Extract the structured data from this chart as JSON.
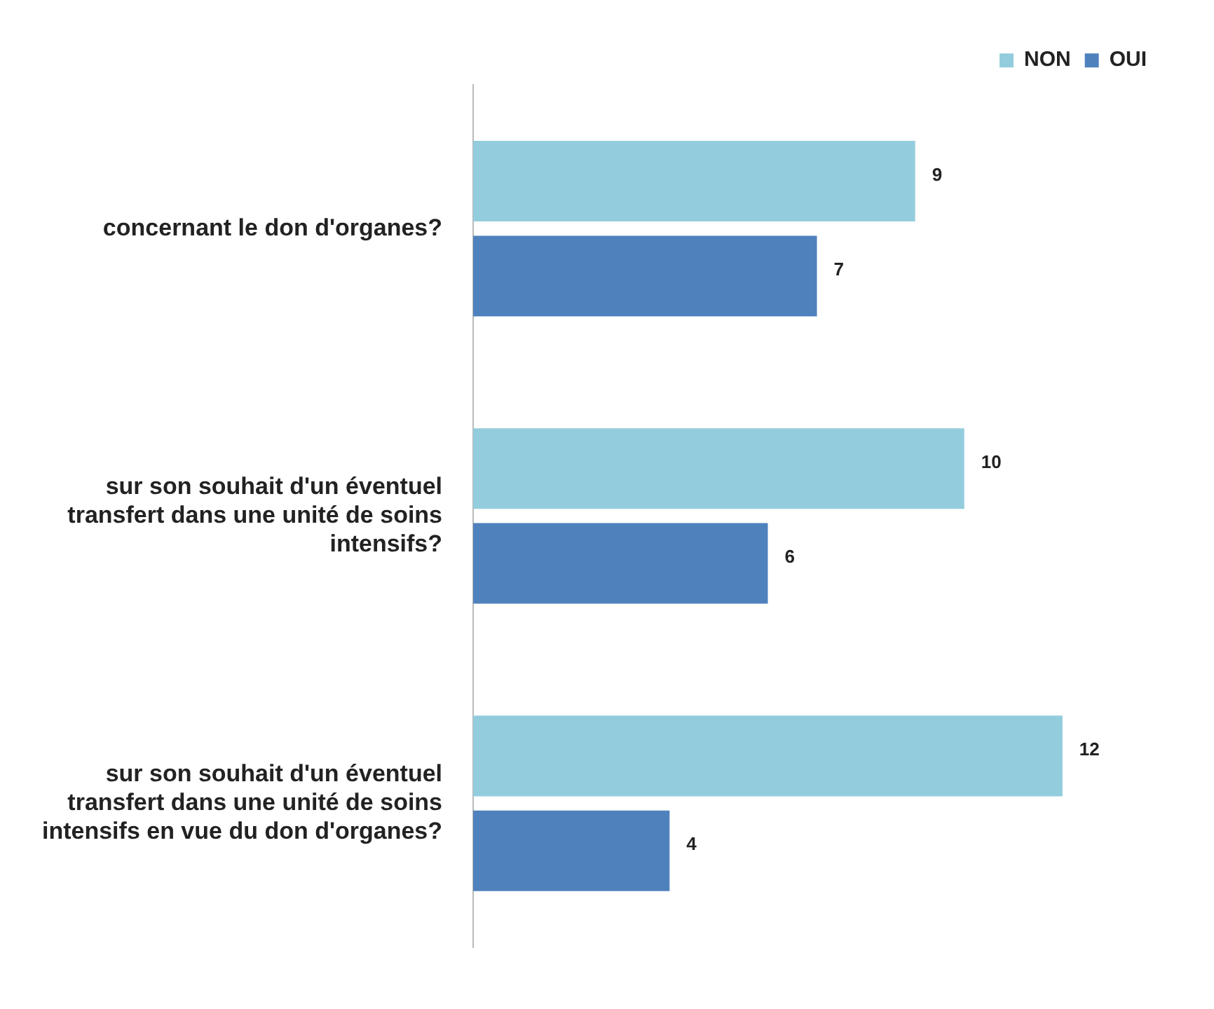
{
  "chart_data": {
    "type": "bar",
    "orientation": "horizontal",
    "categories": [
      "concernant le don d'organes?",
      "sur son souhait d'un éventuel transfert dans une unité de soins intensifs?",
      "sur son souhait d'un éventuel transfert dans une unité de soins intensifs en vue du don d'organes?"
    ],
    "series": [
      {
        "name": "NON",
        "color": "#93cddd",
        "values": [
          9,
          10,
          12
        ]
      },
      {
        "name": "OUI",
        "color": "#4f81bd",
        "values": [
          7,
          6,
          4
        ]
      }
    ],
    "data_labels": true,
    "legend": "top right",
    "grid": false
  }
}
